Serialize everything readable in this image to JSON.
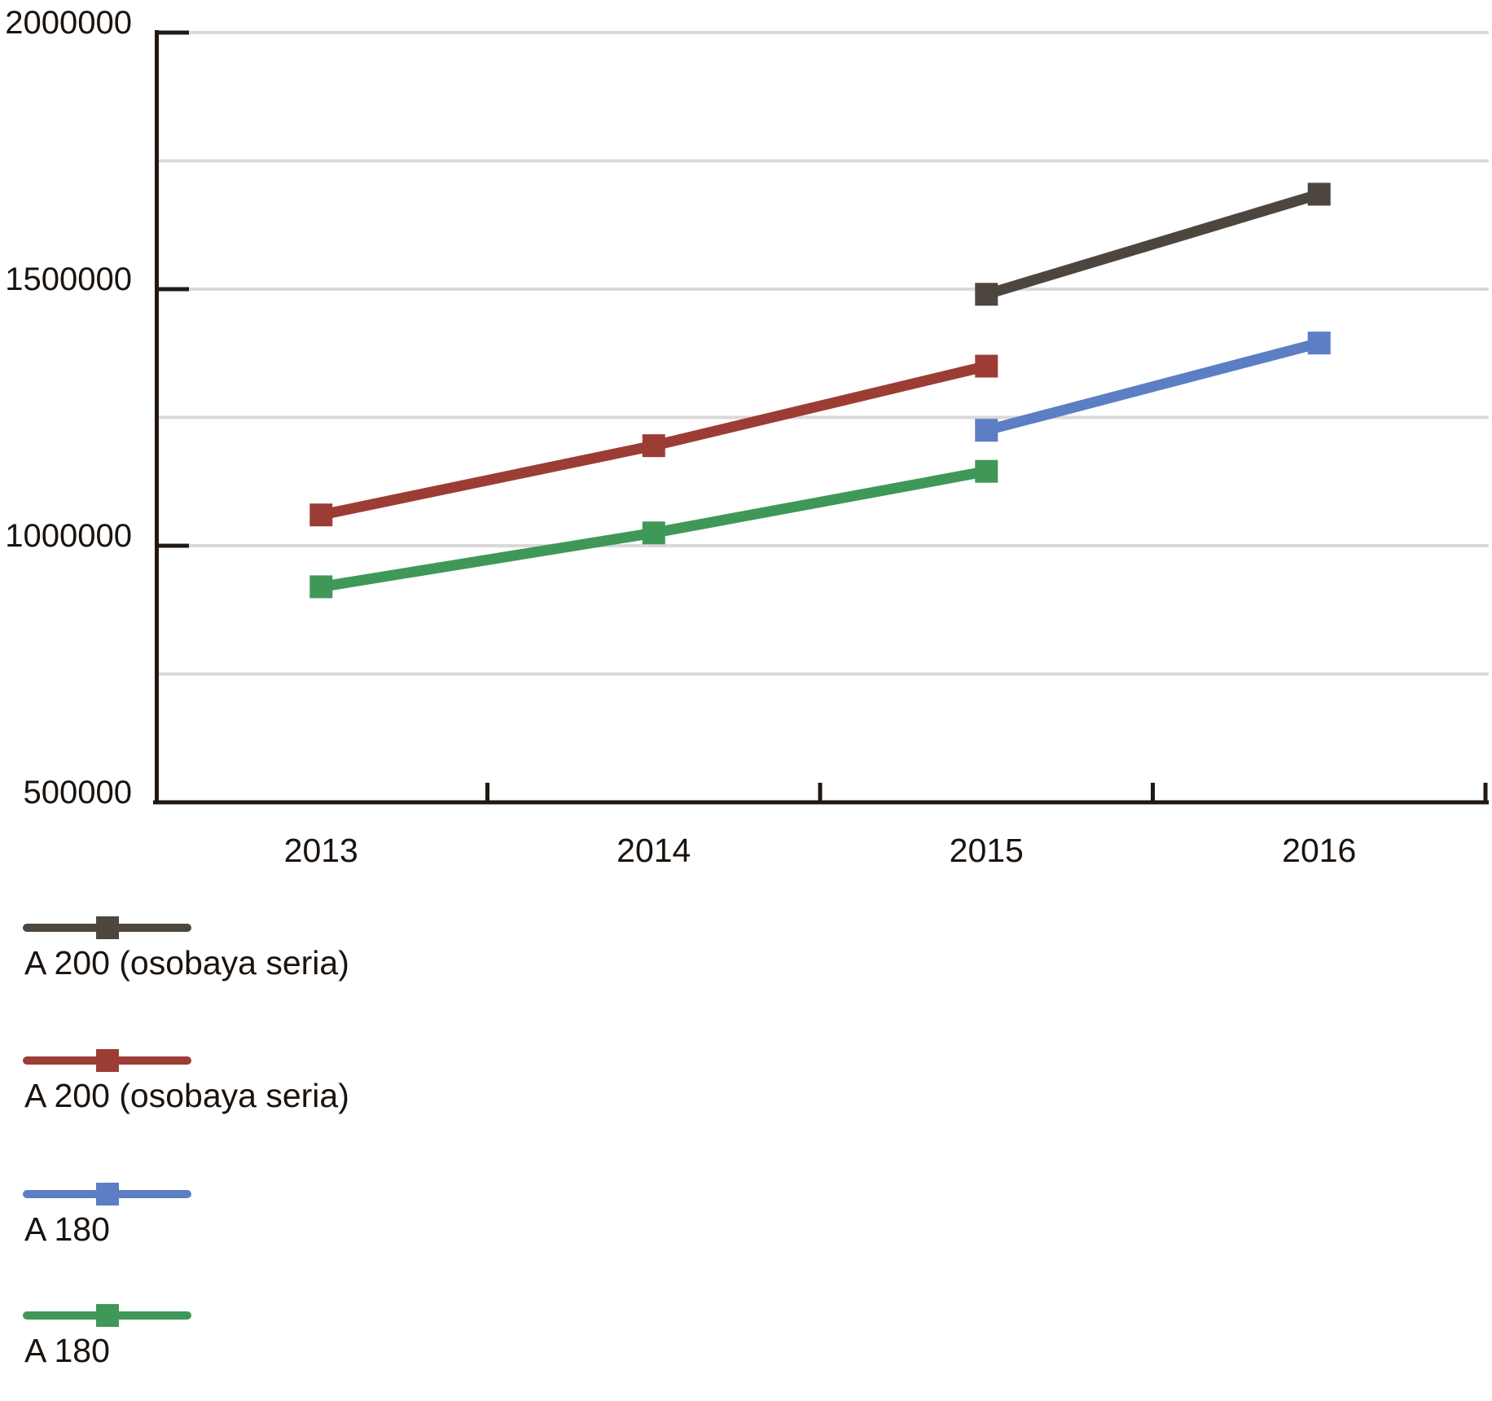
{
  "chart_data": {
    "type": "line",
    "title": "",
    "xlabel": "",
    "ylabel": "",
    "x": [
      "2013",
      "2014",
      "2015",
      "2016"
    ],
    "series": [
      {
        "name": "A 200 (osobaya seria)",
        "color": "#4d463f",
        "marker": "square",
        "values": [
          null,
          null,
          1490000,
          1685000
        ]
      },
      {
        "name": "A 200 (osobaya seria)",
        "color": "#9c3d35",
        "marker": "square",
        "values": [
          1060000,
          1195000,
          1350000,
          null
        ]
      },
      {
        "name": "A 180",
        "color": "#5b7ec4",
        "marker": "square",
        "values": [
          null,
          null,
          1225000,
          1395000
        ]
      },
      {
        "name": "A 180",
        "color": "#3f9858",
        "marker": "square",
        "values": [
          920000,
          1025000,
          1145000,
          null
        ]
      }
    ],
    "ylim": [
      500000,
      2000000
    ],
    "ytick_step": 500000,
    "yticklabels": [
      "500000",
      "1000000",
      "1500000",
      "2000000"
    ],
    "gridline_step": 250000,
    "grid": true,
    "legend_position": "bottom-left",
    "colors": {
      "axis": "#201812",
      "gridline": "#d9d9d9",
      "text": "#1b130d",
      "background": "#ffffff"
    }
  }
}
